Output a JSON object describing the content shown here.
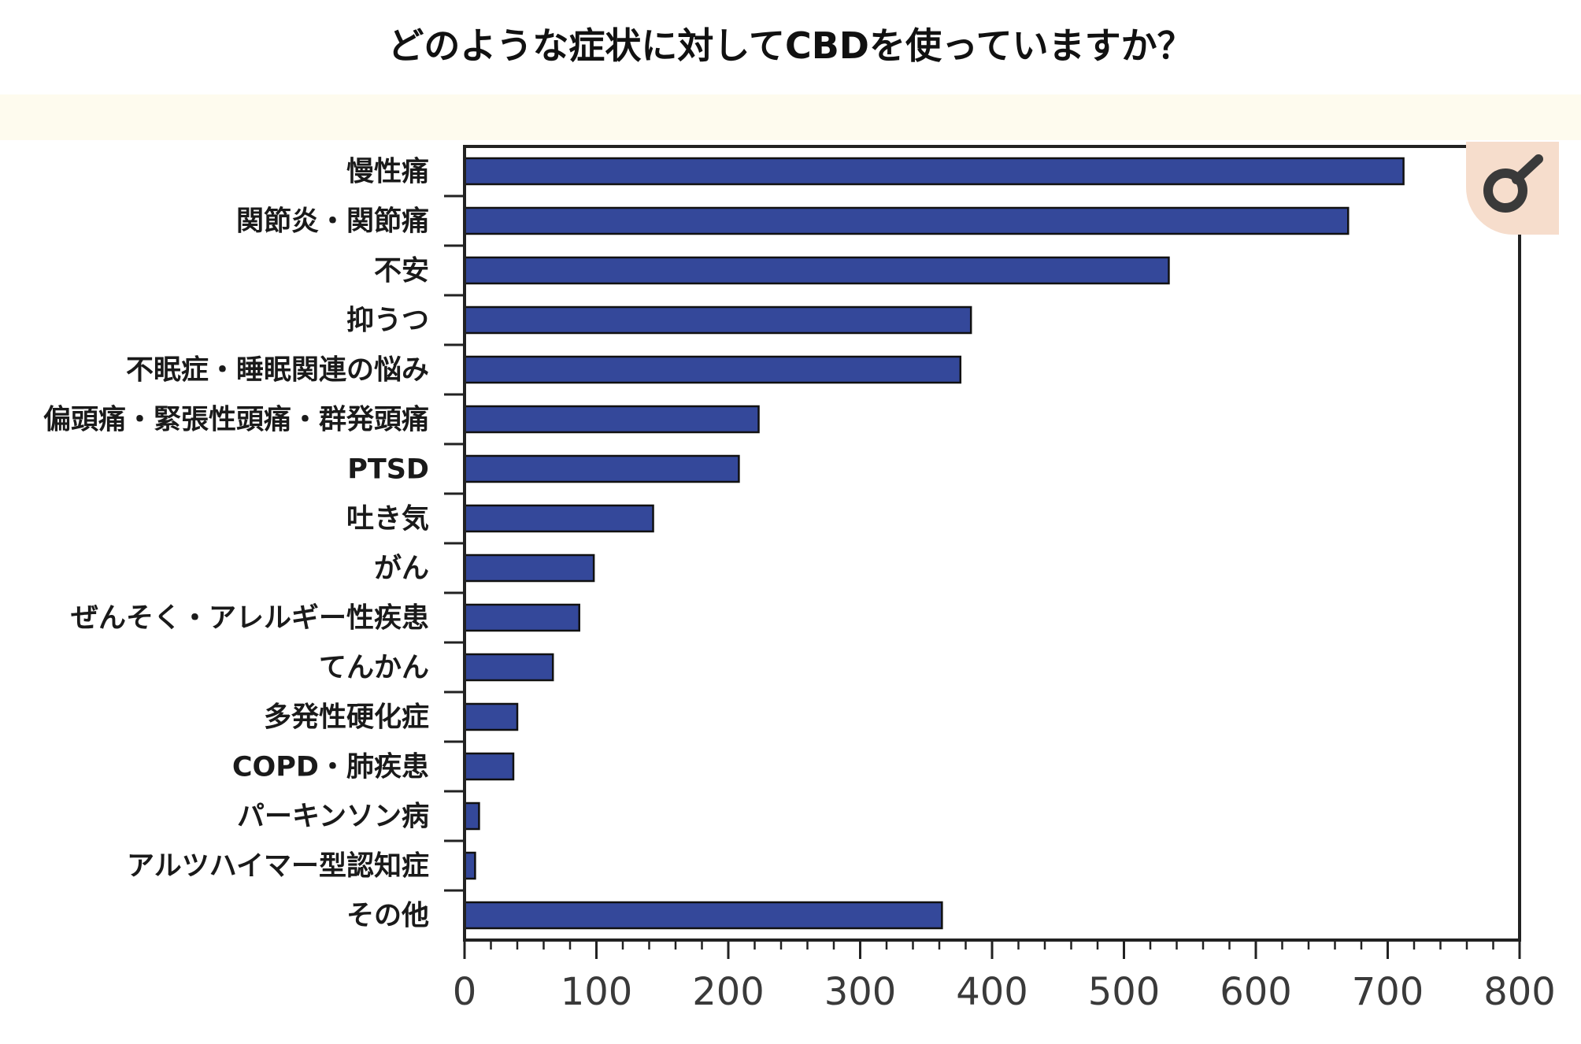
{
  "title": "どのような症状に対してCBDを使っていますか？",
  "chart_data": {
    "type": "bar",
    "orientation": "horizontal",
    "title": "どのような症状に対してCBDを使っていますか？",
    "xlabel": "",
    "ylabel": "",
    "xlim": [
      0,
      800
    ],
    "x_ticks": [
      0,
      100,
      200,
      300,
      400,
      500,
      600,
      700,
      800
    ],
    "categories": [
      "慢性痛",
      "関節炎・関節痛",
      "不安",
      "抑うつ",
      "不眠症・睡眠関連の悩み",
      "偏頭痛・緊張性頭痛・群発頭痛",
      "PTSD",
      "吐き気",
      "がん",
      "ぜんそく・アレルギー性疾患",
      "てんかん",
      "多発性硬化症",
      "COPD・肺疾患",
      "パーキンソン病",
      "アルツハイマー型認知症",
      "その他"
    ],
    "values": [
      712,
      670,
      534,
      384,
      376,
      223,
      208,
      143,
      98,
      87,
      67,
      40,
      37,
      11,
      8,
      362
    ],
    "bar_color": "#34489a",
    "grid": false,
    "legend": "none"
  }
}
